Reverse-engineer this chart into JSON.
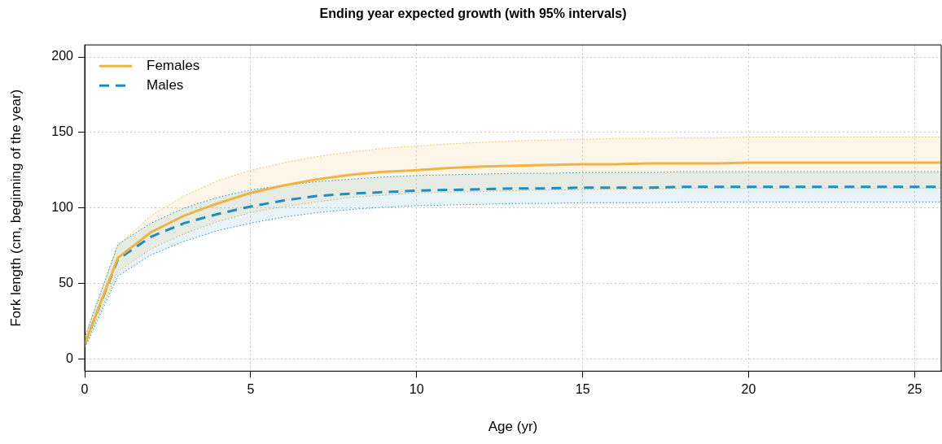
{
  "chart_data": {
    "type": "line",
    "title": "Ending year expected growth (with 95% intervals)",
    "xlabel": "Age (yr)",
    "ylabel": "Fork length (cm, beginning of the year)",
    "x": [
      0,
      1,
      2,
      3,
      4,
      5,
      6,
      7,
      8,
      9,
      10,
      11,
      12,
      13,
      14,
      15,
      16,
      17,
      18,
      19,
      20,
      21,
      22,
      23,
      24,
      25,
      25.8
    ],
    "series": [
      {
        "name": "Females",
        "color": "#f0b445",
        "line_style": "solid",
        "values": [
          10,
          67,
          84,
          95,
          103,
          110,
          115,
          119,
          122,
          124,
          125,
          126.5,
          127.5,
          128,
          128.5,
          129,
          129,
          129.5,
          129.5,
          129.5,
          130,
          130,
          130,
          130,
          130,
          130,
          130
        ],
        "lower": [
          8,
          58,
          73,
          83,
          91,
          97,
          101,
          104,
          107,
          108.5,
          110,
          110.5,
          111,
          111.5,
          112,
          112,
          112.5,
          112.5,
          113,
          113,
          113,
          113,
          113,
          113,
          113,
          113,
          113
        ],
        "upper": [
          15,
          75,
          95,
          108,
          118,
          125,
          130,
          134,
          137,
          139.5,
          141,
          142.5,
          143.5,
          144.5,
          145,
          145.5,
          146,
          146,
          146.5,
          146.5,
          147,
          147,
          147,
          147,
          147,
          147,
          147
        ]
      },
      {
        "name": "Males",
        "color": "#1f8ebf",
        "line_style": "dashed",
        "values": [
          10,
          66,
          81,
          90,
          96,
          101,
          105,
          108,
          109.5,
          110.5,
          111.5,
          112,
          112.5,
          113,
          113,
          113.5,
          113.5,
          113.5,
          114,
          114,
          114,
          114,
          114,
          114,
          114,
          114,
          114
        ],
        "lower": [
          7,
          55,
          69,
          78,
          85,
          90,
          94,
          97,
          99,
          100.5,
          101.5,
          102,
          102.5,
          103,
          103,
          103.5,
          103.5,
          103.5,
          104,
          104,
          104,
          104,
          104,
          104,
          104,
          104,
          104
        ],
        "upper": [
          14,
          76,
          90,
          100,
          107,
          112,
          115,
          117.5,
          119,
          120.5,
          121.5,
          122,
          122.5,
          123,
          123,
          123.5,
          123.5,
          123.5,
          124,
          124,
          124,
          124,
          124,
          124,
          124,
          124,
          124
        ]
      }
    ],
    "xlim": [
      0,
      25.8
    ],
    "xticks": [
      0,
      5,
      10,
      15,
      20,
      25
    ],
    "ylim": [
      -8,
      208
    ],
    "yticks": [
      0,
      50,
      100,
      150,
      200
    ],
    "grid": true,
    "legend": "top left",
    "marker": "none"
  }
}
